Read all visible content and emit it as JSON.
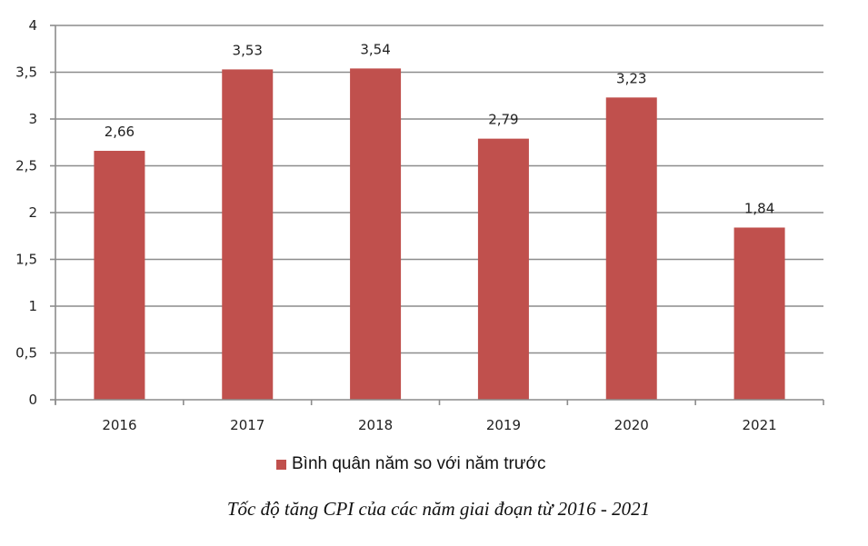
{
  "chart_data": {
    "type": "bar",
    "title": "Tốc độ tăng CPI của các năm giai đoạn từ 2016 - 2021",
    "xlabel": "",
    "ylabel": "",
    "categories": [
      "2016",
      "2017",
      "2018",
      "2019",
      "2020",
      "2021"
    ],
    "series": [
      {
        "name": "Bình quân năm so với năm trước",
        "color": "#c0504d",
        "values": [
          2.66,
          3.53,
          3.54,
          2.79,
          3.23,
          1.84
        ],
        "data_labels": [
          "2,66",
          "3,53",
          "3,54",
          "2,79",
          "3,23",
          "1,84"
        ]
      }
    ],
    "ylim": [
      0,
      4
    ],
    "yticks": [
      0,
      0.5,
      1,
      1.5,
      2,
      2.5,
      3,
      3.5,
      4
    ],
    "ytick_labels": [
      "0",
      "0,5",
      "1",
      "1,5",
      "2",
      "2,5",
      "3",
      "3,5",
      "4"
    ],
    "grid": true,
    "legend_position": "bottom"
  },
  "legend": {
    "label": "Bình quân năm so với năm trước",
    "color": "#c0504d"
  },
  "caption": "Tốc độ tăng CPI của các năm giai đoạn từ 2016 - 2021",
  "colors": {
    "bar": "#c0504d",
    "grid": "#8c8c8c",
    "axis": "#8c8c8c",
    "text": "#222222"
  }
}
